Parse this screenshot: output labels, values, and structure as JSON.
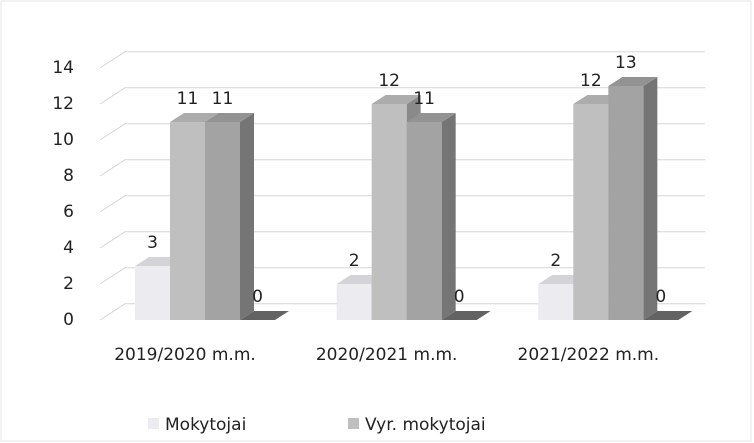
{
  "chart_data": {
    "type": "bar3d",
    "categories": [
      "2019/2020 m.m.",
      "2020/2021 m.m.",
      "2021/2022 m.m."
    ],
    "series": [
      {
        "name": "Mokytojai",
        "color": "#ebebf0",
        "values": [
          3,
          2,
          2
        ]
      },
      {
        "name": "Vyr. mokytojai",
        "color": "#bfbfbf",
        "values": [
          11,
          12,
          12
        ]
      },
      {
        "color": "#a3a3a3",
        "values": [
          11,
          11,
          13
        ]
      },
      {
        "color": "#6e6e6e",
        "values": [
          0,
          0,
          0
        ]
      }
    ],
    "ylim": [
      0,
      14
    ],
    "yticks": [
      0,
      2,
      4,
      6,
      8,
      10,
      12,
      14
    ],
    "grid": true,
    "legend": "bottom"
  }
}
